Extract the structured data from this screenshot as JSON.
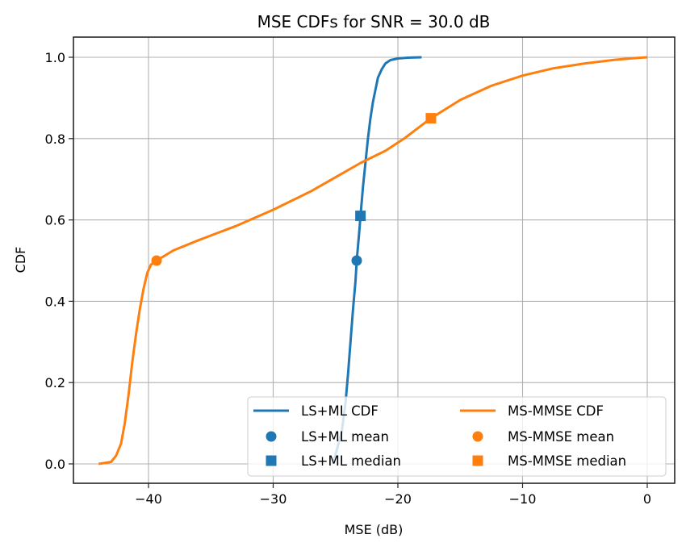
{
  "chart_data": {
    "type": "line",
    "title": "MSE CDFs for SNR = 30.0 dB",
    "xlabel": "MSE (dB)",
    "ylabel": "CDF",
    "xlim": [
      -46.0,
      1.9
    ],
    "ylim": [
      -0.05,
      1.05
    ],
    "xticks": [
      -40,
      -30,
      -20,
      -10,
      0
    ],
    "xtick_labels": [
      "−40",
      "−30",
      "−20",
      "−10",
      "0"
    ],
    "yticks": [
      0.0,
      0.2,
      0.4,
      0.6,
      0.8,
      1.0
    ],
    "ytick_labels": [
      "0.0",
      "0.2",
      "0.4",
      "0.6",
      "0.8",
      "1.0"
    ],
    "grid": true,
    "legend_position": "lower-right",
    "legend_columns": 2,
    "series": [
      {
        "name": "LS+ML CDF",
        "kind": "line",
        "color": "#1f77b4",
        "x": [
          -25.2,
          -24.5,
          -24.2,
          -24.0,
          -23.8,
          -23.6,
          -23.4,
          -23.3,
          -23.1,
          -23.0,
          -22.8,
          -22.6,
          -22.4,
          -22.2,
          -22.0,
          -21.8,
          -21.6,
          -21.3,
          -21.0,
          -20.6,
          -20.0,
          -19.2,
          -18.1
        ],
        "y": [
          0.0,
          0.08,
          0.15,
          0.22,
          0.3,
          0.38,
          0.45,
          0.5,
          0.57,
          0.61,
          0.68,
          0.74,
          0.8,
          0.85,
          0.89,
          0.92,
          0.95,
          0.97,
          0.985,
          0.993,
          0.997,
          0.999,
          1.0
        ]
      },
      {
        "name": "MS-MMSE CDF",
        "kind": "line",
        "color": "#ff7f0e",
        "x": [
          -44.0,
          -43.0,
          -42.6,
          -42.2,
          -41.9,
          -41.6,
          -41.3,
          -41.0,
          -40.7,
          -40.4,
          -40.1,
          -39.8,
          -39.35,
          -38.0,
          -36.0,
          -33.0,
          -30.0,
          -27.0,
          -25.0,
          -23.0,
          -21.0,
          -19.5,
          -17.35,
          -15.0,
          -12.5,
          -10.0,
          -7.5,
          -5.0,
          -2.5,
          -1.0,
          0.0
        ],
        "y": [
          0.0,
          0.005,
          0.02,
          0.05,
          0.1,
          0.17,
          0.25,
          0.32,
          0.38,
          0.43,
          0.47,
          0.49,
          0.5,
          0.525,
          0.55,
          0.585,
          0.625,
          0.67,
          0.705,
          0.74,
          0.77,
          0.8,
          0.85,
          0.895,
          0.93,
          0.955,
          0.973,
          0.985,
          0.994,
          0.998,
          1.0
        ]
      },
      {
        "name": "LS+ML mean",
        "kind": "marker-circle",
        "color": "#1f77b4",
        "x": [
          -23.3
        ],
        "y": [
          0.5
        ]
      },
      {
        "name": "MS-MMSE mean",
        "kind": "marker-circle",
        "color": "#ff7f0e",
        "x": [
          -39.35
        ],
        "y": [
          0.5
        ]
      },
      {
        "name": "LS+ML median",
        "kind": "marker-square",
        "color": "#1f77b4",
        "x": [
          -23.0
        ],
        "y": [
          0.61
        ]
      },
      {
        "name": "MS-MMSE median",
        "kind": "marker-square",
        "color": "#ff7f0e",
        "x": [
          -17.35
        ],
        "y": [
          0.85
        ]
      }
    ],
    "legend": [
      {
        "label": "LS+ML CDF",
        "kind": "line",
        "color": "#1f77b4"
      },
      {
        "label": "LS+ML mean",
        "kind": "marker-circle",
        "color": "#1f77b4"
      },
      {
        "label": "LS+ML median",
        "kind": "marker-square",
        "color": "#1f77b4"
      },
      {
        "label": "MS-MMSE CDF",
        "kind": "line",
        "color": "#ff7f0e"
      },
      {
        "label": "MS-MMSE mean",
        "kind": "marker-circle",
        "color": "#ff7f0e"
      },
      {
        "label": "MS-MMSE median",
        "kind": "marker-square",
        "color": "#ff7f0e"
      }
    ]
  }
}
